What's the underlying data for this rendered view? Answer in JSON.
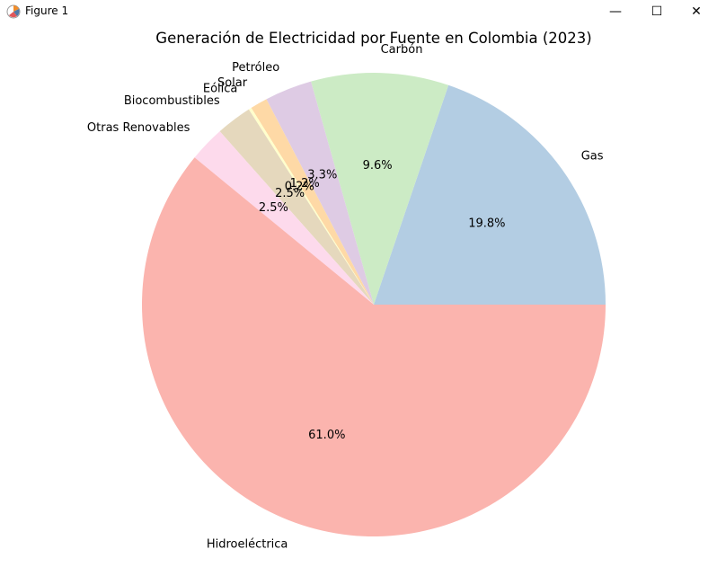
{
  "window": {
    "title": "Figure 1",
    "minimize_label": "—",
    "maximize_label": "☐",
    "close_label": "✕"
  },
  "chart_data": {
    "type": "pie",
    "title": "Generación de Electricidad por Fuente en Colombia (2023)",
    "slices": [
      {
        "label": "Gas",
        "value": 19.8,
        "pct_label": "19.8%",
        "color": "#b3cde3"
      },
      {
        "label": "Carbón",
        "value": 9.6,
        "pct_label": "9.6%",
        "color": "#ccebc5"
      },
      {
        "label": "Petróleo",
        "value": 3.3,
        "pct_label": "3.3%",
        "color": "#decbe4"
      },
      {
        "label": "Solar",
        "value": 1.2,
        "pct_label": "1.2%",
        "color": "#fed9a6"
      },
      {
        "label": "Eólica",
        "value": 0.2,
        "pct_label": "0.2%",
        "color": "#ffffcc"
      },
      {
        "label": "Biocombustibles",
        "value": 2.5,
        "pct_label": "2.5%",
        "color": "#e5d8bd"
      },
      {
        "label": "Otras Renovables",
        "value": 2.5,
        "pct_label": "2.5%",
        "color": "#fddaec"
      },
      {
        "label": "Hidroeléctrica",
        "value": 61.0,
        "pct_label": "61.0%",
        "color": "#fbb4ae"
      }
    ],
    "start_angle_deg": 0,
    "direction": "counterclockwise",
    "legend": "none"
  }
}
